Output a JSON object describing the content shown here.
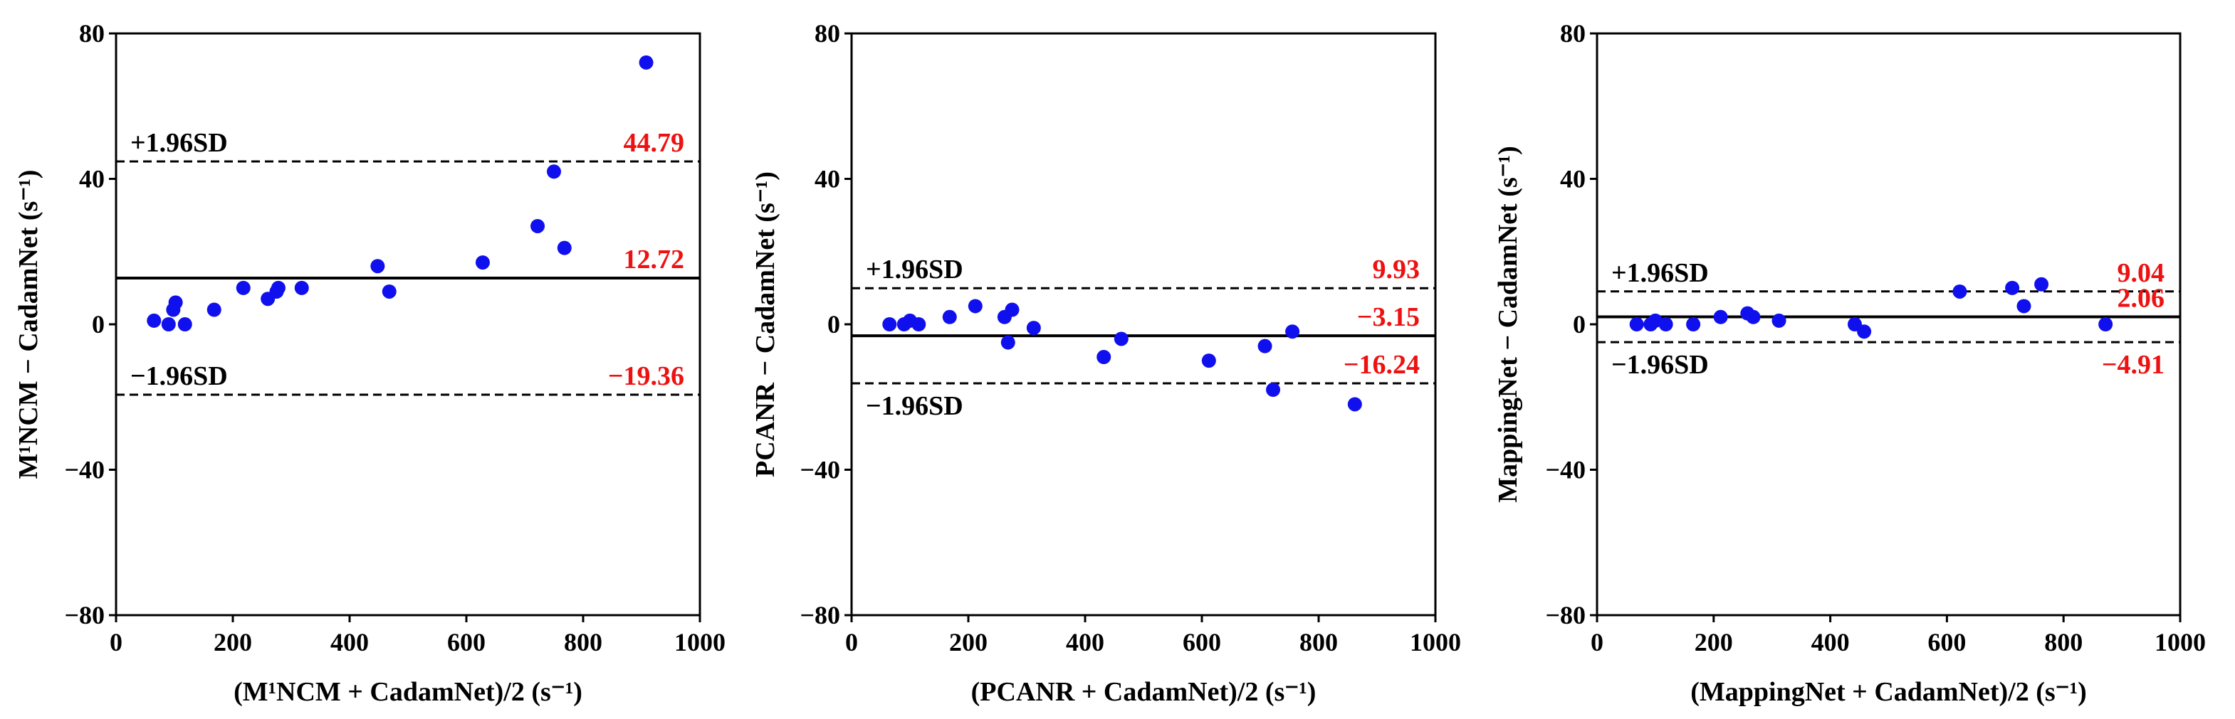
{
  "chart_data": [
    {
      "type": "scatter",
      "xlabel": "(M¹NCM + CadamNet)/2 (s⁻¹)",
      "ylabel": "M¹NCM − CadamNet (s⁻¹)",
      "xlim": [
        0,
        1000
      ],
      "ylim": [
        -80,
        80
      ],
      "xticks": [
        "0",
        "200",
        "400",
        "600",
        "800",
        "1000"
      ],
      "yticks": [
        "−80",
        "−40",
        "0",
        "40",
        "80"
      ],
      "points": [
        [
          65,
          1
        ],
        [
          90,
          0
        ],
        [
          98,
          4
        ],
        [
          102,
          6
        ],
        [
          118,
          0
        ],
        [
          168,
          4
        ],
        [
          218,
          10
        ],
        [
          260,
          7
        ],
        [
          275,
          9
        ],
        [
          278,
          10
        ],
        [
          318,
          10
        ],
        [
          448,
          16
        ],
        [
          468,
          9
        ],
        [
          628,
          17
        ],
        [
          722,
          27
        ],
        [
          750,
          42
        ],
        [
          768,
          21
        ],
        [
          908,
          72
        ]
      ],
      "mean": 12.72,
      "upper": 44.79,
      "lower": -19.36,
      "upper_label": "+1.96SD",
      "lower_label": "−1.96SD",
      "mean_text": "12.72",
      "upper_text": "44.79",
      "lower_text": "−19.36"
    },
    {
      "type": "scatter",
      "xlabel": "(PCANR + CadamNet)/2 (s⁻¹)",
      "ylabel": "PCANR − CadamNet (s⁻¹)",
      "xlim": [
        0,
        1000
      ],
      "ylim": [
        -80,
        80
      ],
      "xticks": [
        "0",
        "200",
        "400",
        "600",
        "800",
        "1000"
      ],
      "yticks": [
        "−80",
        "−40",
        "0",
        "40",
        "80"
      ],
      "points": [
        [
          65,
          0
        ],
        [
          90,
          0
        ],
        [
          100,
          1
        ],
        [
          115,
          0
        ],
        [
          168,
          2
        ],
        [
          212,
          5
        ],
        [
          262,
          2
        ],
        [
          268,
          -5
        ],
        [
          275,
          4
        ],
        [
          312,
          -1
        ],
        [
          432,
          -9
        ],
        [
          462,
          -4
        ],
        [
          612,
          -10
        ],
        [
          708,
          -6
        ],
        [
          722,
          -18
        ],
        [
          755,
          -2
        ],
        [
          862,
          -22
        ]
      ],
      "mean": -3.15,
      "upper": 9.93,
      "lower": -16.24,
      "upper_label": "+1.96SD",
      "lower_label": "−1.96SD",
      "mean_text": "−3.15",
      "upper_text": "9.93",
      "lower_text": "−16.24"
    },
    {
      "type": "scatter",
      "xlabel": "(MappingNet + CadamNet)/2 (s⁻¹)",
      "ylabel": "MappingNet − CadamNet (s⁻¹)",
      "xlim": [
        0,
        1000
      ],
      "ylim": [
        -80,
        80
      ],
      "xticks": [
        "0",
        "200",
        "400",
        "600",
        "800",
        "1000"
      ],
      "yticks": [
        "−80",
        "−40",
        "0",
        "40",
        "80"
      ],
      "points": [
        [
          68,
          0
        ],
        [
          92,
          0
        ],
        [
          100,
          1
        ],
        [
          118,
          0
        ],
        [
          165,
          0
        ],
        [
          212,
          2
        ],
        [
          258,
          3
        ],
        [
          268,
          2
        ],
        [
          312,
          1
        ],
        [
          442,
          0
        ],
        [
          458,
          -2
        ],
        [
          622,
          9
        ],
        [
          712,
          10
        ],
        [
          732,
          5
        ],
        [
          762,
          11
        ],
        [
          872,
          0
        ]
      ],
      "mean": 2.06,
      "upper": 9.04,
      "lower": -4.91,
      "upper_label": "+1.96SD",
      "lower_label": "−1.96SD",
      "mean_text": "2.06",
      "upper_text": "9.04",
      "lower_text": "−4.91"
    }
  ],
  "colors": {
    "points": "#1010ee",
    "value_labels": "#ee1111",
    "lines": "#000000"
  }
}
